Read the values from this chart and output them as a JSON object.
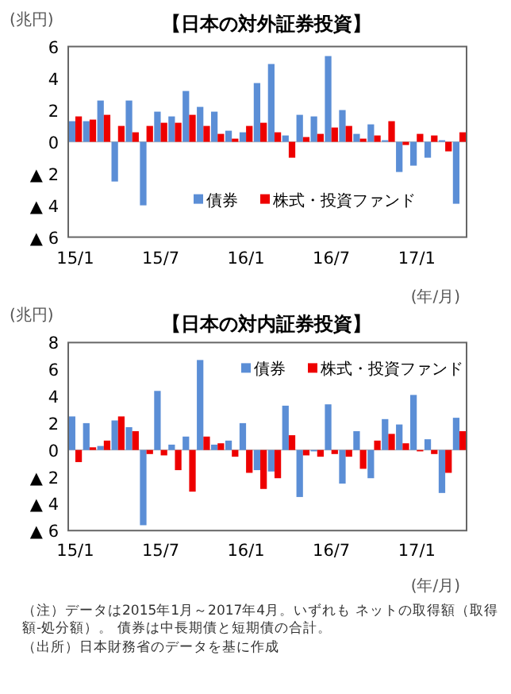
{
  "chart_data": [
    {
      "type": "bar",
      "title": "【日本の対外証券投資】",
      "ylabel": "(兆円)",
      "xlabel": "(年/月)",
      "legend": "bottom",
      "categories": [
        "15/1",
        null,
        null,
        null,
        null,
        null,
        "15/7",
        null,
        null,
        null,
        null,
        null,
        "16/1",
        null,
        null,
        null,
        null,
        null,
        "16/7",
        null,
        null,
        null,
        null,
        null,
        "17/1",
        null,
        null,
        null
      ],
      "ylim": [
        -6,
        6
      ],
      "yticks": [
        {
          "value": -6,
          "label": "▲ 6"
        },
        {
          "value": -4,
          "label": "▲ 4"
        },
        {
          "value": -2,
          "label": "▲ 2"
        },
        0,
        2,
        4,
        6
      ],
      "series": [
        {
          "name": "債券",
          "color": "#5b8ed6",
          "values": [
            1.3,
            1.3,
            2.6,
            -2.5,
            2.6,
            -4.0,
            1.9,
            1.6,
            3.2,
            2.2,
            1.9,
            0.7,
            0.6,
            3.7,
            4.9,
            0.4,
            1.7,
            1.6,
            5.4,
            2.0,
            0.5,
            1.1,
            0.1,
            -1.9,
            -1.5,
            -1.0,
            0.1,
            -3.9
          ]
        },
        {
          "name": "株式・投資ファンド",
          "color": "#ee0000",
          "values": [
            1.6,
            1.4,
            1.7,
            1.0,
            0.6,
            1.0,
            1.2,
            1.2,
            1.7,
            1.0,
            0.5,
            0.2,
            1.0,
            1.2,
            0.6,
            -1.0,
            0.3,
            0.5,
            0.9,
            1.0,
            0.2,
            0.4,
            1.3,
            -0.2,
            0.5,
            0.4,
            -0.6,
            0.6
          ]
        }
      ]
    },
    {
      "type": "bar",
      "title": "【日本の対内証券投資】",
      "ylabel": "(兆円)",
      "xlabel": "(年/月)",
      "legend": "top right",
      "categories": [
        "15/1",
        null,
        null,
        null,
        null,
        null,
        "15/7",
        null,
        null,
        null,
        null,
        null,
        "16/1",
        null,
        null,
        null,
        null,
        null,
        "16/7",
        null,
        null,
        null,
        null,
        null,
        "17/1",
        null,
        null,
        null
      ],
      "ylim": [
        -6,
        8
      ],
      "yticks": [
        {
          "value": -6,
          "label": "▲ 6"
        },
        {
          "value": -4,
          "label": "▲ 4"
        },
        {
          "value": -2,
          "label": "▲ 2"
        },
        0,
        2,
        4,
        6,
        8
      ],
      "series": [
        {
          "name": "債券",
          "color": "#5b8ed6",
          "values": [
            2.5,
            2.0,
            0.3,
            2.2,
            1.7,
            -5.6,
            4.4,
            0.4,
            1.0,
            6.7,
            0.4,
            0.7,
            2.0,
            -1.5,
            -1.6,
            3.3,
            -3.5,
            -0.1,
            3.4,
            -2.5,
            1.4,
            -2.1,
            2.3,
            1.9,
            4.1,
            0.8,
            -3.2,
            2.4
          ]
        },
        {
          "name": "株式・投資ファンド",
          "color": "#ee0000",
          "values": [
            -0.9,
            0.2,
            0.7,
            2.5,
            1.4,
            -0.3,
            -0.4,
            -1.5,
            -3.1,
            1.0,
            0.5,
            -0.5,
            -1.7,
            -2.9,
            -2.1,
            1.1,
            -0.4,
            -0.5,
            -0.3,
            -0.5,
            -1.4,
            0.7,
            1.2,
            0.5,
            -0.1,
            -0.3,
            -1.7,
            1.4
          ]
        }
      ],
      "annotations": [
        "（注）データは2015年1月～2017年4月。いずれも ネットの取得額（取得額-処分額）。 債券は中長期債と短期債の合計。",
        "（出所）日本財務省のデータを基に作成"
      ]
    }
  ]
}
